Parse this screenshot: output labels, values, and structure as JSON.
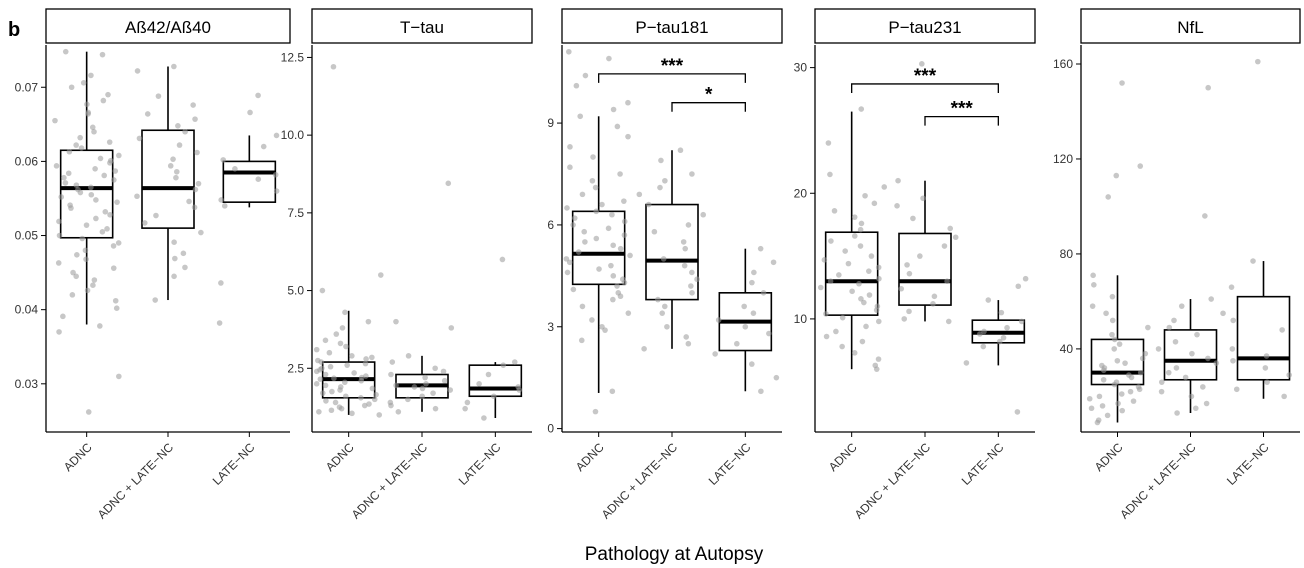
{
  "panel_tag": "b",
  "x_axis_title": "Pathology at Autopsy",
  "chart_data": [
    {
      "type": "box",
      "title": "Aß42/Aß40",
      "categories": [
        "ADNC",
        "ADNC + LATE−NC",
        "LATE−NC"
      ],
      "ylim": [
        0.0235,
        0.0757
      ],
      "yticks": [
        0.03,
        0.04,
        0.05,
        0.06,
        0.07
      ],
      "ytick_labels": [
        "0.03",
        "0.04",
        "0.05",
        "0.06",
        "0.07"
      ],
      "boxes": [
        {
          "q1": 0.0497,
          "median": 0.0564,
          "q3": 0.0615,
          "lo": 0.038,
          "hi": 0.0748
        },
        {
          "q1": 0.051,
          "median": 0.0564,
          "q3": 0.0642,
          "lo": 0.0413,
          "hi": 0.0728
        },
        {
          "q1": 0.0545,
          "median": 0.0585,
          "q3": 0.06,
          "lo": 0.0538,
          "hi": 0.0635
        }
      ],
      "points": [
        [
          0.0748,
          0.0744,
          0.0716,
          0.0706,
          0.07,
          0.069,
          0.0682,
          0.0677,
          0.0666,
          0.0664,
          0.0655,
          0.0646,
          0.064,
          0.0632,
          0.0626,
          0.0622,
          0.0618,
          0.0613,
          0.0608,
          0.0604,
          0.0601,
          0.0598,
          0.0594,
          0.059,
          0.0587,
          0.0584,
          0.0581,
          0.0578,
          0.0575,
          0.0571,
          0.0568,
          0.0565,
          0.0562,
          0.0558,
          0.0555,
          0.0552,
          0.0548,
          0.0545,
          0.0541,
          0.0537,
          0.0532,
          0.0528,
          0.0523,
          0.0519,
          0.0514,
          0.0509,
          0.0505,
          0.05,
          0.0496,
          0.049,
          0.0486,
          0.048,
          0.0474,
          0.0468,
          0.0463,
          0.0456,
          0.045,
          0.0445,
          0.044,
          0.0433,
          0.0426,
          0.042,
          0.0412,
          0.0402,
          0.0391,
          0.0378,
          0.037,
          0.031,
          0.0262
        ],
        [
          0.0728,
          0.0722,
          0.0688,
          0.0676,
          0.0664,
          0.0657,
          0.0648,
          0.064,
          0.0631,
          0.0622,
          0.0612,
          0.0603,
          0.0594,
          0.0586,
          0.0578,
          0.057,
          0.0562,
          0.0553,
          0.0546,
          0.0538,
          0.0527,
          0.0517,
          0.0504,
          0.0491,
          0.0476,
          0.0469,
          0.0457,
          0.0445,
          0.0413
        ],
        [
          0.0689,
          0.0666,
          0.0635,
          0.062,
          0.0602,
          0.059,
          0.0582,
          0.0576,
          0.056,
          0.0548,
          0.054,
          0.0436,
          0.0382
        ]
      ],
      "annotations": []
    },
    {
      "type": "box",
      "title": "T−tau",
      "categories": [
        "ADNC",
        "ADNC + LATE−NC",
        "LATE−NC"
      ],
      "ylim": [
        0.45,
        12.9
      ],
      "yticks": [
        2.5,
        5.0,
        7.5,
        10.0,
        12.5
      ],
      "ytick_labels": [
        "2.5",
        "5.0",
        "7.5",
        "10.0",
        "12.5"
      ],
      "boxes": [
        {
          "q1": 1.55,
          "median": 2.15,
          "q3": 2.7,
          "lo": 1.0,
          "hi": 4.35
        },
        {
          "q1": 1.55,
          "median": 1.95,
          "q3": 2.3,
          "lo": 1.1,
          "hi": 2.9
        },
        {
          "q1": 1.6,
          "median": 1.85,
          "q3": 2.6,
          "lo": 0.9,
          "hi": 2.7
        }
      ],
      "points": [
        [
          12.2,
          5.5,
          5.0,
          4.3,
          4.0,
          3.8,
          3.6,
          3.4,
          3.3,
          3.2,
          3.1,
          3.0,
          2.9,
          2.85,
          2.8,
          2.75,
          2.7,
          2.65,
          2.6,
          2.55,
          2.5,
          2.45,
          2.4,
          2.35,
          2.3,
          2.25,
          2.2,
          2.18,
          2.15,
          2.1,
          2.05,
          2.0,
          1.95,
          1.9,
          1.85,
          1.8,
          1.75,
          1.7,
          1.65,
          1.6,
          1.55,
          1.5,
          1.45,
          1.4,
          1.35,
          1.3,
          1.25,
          1.2,
          1.15,
          1.1,
          1.05,
          1.0
        ],
        [
          8.45,
          4.0,
          3.8,
          2.9,
          2.7,
          2.5,
          2.4,
          2.3,
          2.2,
          2.1,
          2.0,
          1.95,
          1.9,
          1.85,
          1.8,
          1.7,
          1.6,
          1.5,
          1.4,
          1.3,
          1.2,
          1.1
        ],
        [
          6.0,
          2.7,
          2.6,
          2.3,
          2.0,
          1.9,
          1.8,
          1.6,
          1.4,
          1.2,
          0.9
        ]
      ],
      "annotations": []
    },
    {
      "type": "box",
      "title": "P−tau181",
      "categories": [
        "ADNC",
        "ADNC + LATE−NC",
        "LATE−NC"
      ],
      "ylim": [
        -0.1,
        11.3
      ],
      "yticks": [
        0,
        3,
        6,
        9
      ],
      "ytick_labels": [
        "0",
        "3",
        "6",
        "9"
      ],
      "boxes": [
        {
          "q1": 4.25,
          "median": 5.15,
          "q3": 6.4,
          "lo": 1.05,
          "hi": 9.2
        },
        {
          "q1": 3.8,
          "median": 4.95,
          "q3": 6.6,
          "lo": 2.35,
          "hi": 8.2
        },
        {
          "q1": 2.3,
          "median": 3.15,
          "q3": 4.0,
          "lo": 1.1,
          "hi": 5.3
        }
      ],
      "points": [
        [
          11.1,
          10.9,
          10.4,
          10.1,
          9.6,
          9.4,
          9.2,
          8.9,
          8.6,
          8.3,
          8.0,
          7.7,
          7.5,
          7.3,
          7.1,
          6.9,
          6.7,
          6.6,
          6.5,
          6.4,
          6.3,
          6.2,
          6.1,
          6.0,
          5.9,
          5.8,
          5.7,
          5.6,
          5.5,
          5.4,
          5.3,
          5.2,
          5.1,
          5.0,
          4.9,
          4.8,
          4.7,
          4.6,
          4.5,
          4.4,
          4.3,
          4.2,
          4.1,
          4.0,
          3.9,
          3.8,
          3.6,
          3.4,
          3.2,
          3.0,
          2.9,
          2.6,
          1.1,
          0.5
        ],
        [
          8.2,
          7.9,
          7.5,
          7.3,
          7.1,
          6.9,
          6.6,
          6.3,
          6.0,
          5.8,
          5.5,
          5.3,
          5.0,
          4.8,
          4.6,
          4.4,
          4.2,
          4.0,
          3.8,
          3.6,
          3.4,
          3.0,
          2.7,
          2.5,
          2.35
        ],
        [
          5.3,
          4.9,
          4.6,
          4.3,
          4.0,
          3.6,
          3.4,
          3.2,
          3.0,
          2.8,
          2.5,
          2.2,
          1.9,
          1.5,
          1.1
        ]
      ],
      "annotations": [
        {
          "from": 0,
          "to": 2,
          "y": 10.45,
          "label": "***"
        },
        {
          "from": 1,
          "to": 2,
          "y": 9.6,
          "label": "*"
        }
      ]
    },
    {
      "type": "box",
      "title": "P−tau231",
      "categories": [
        "ADNC",
        "ADNC + LATE−NC",
        "LATE−NC"
      ],
      "ylim": [
        1.0,
        31.8
      ],
      "yticks": [
        10,
        20,
        30
      ],
      "ytick_labels": [
        "10",
        "20",
        "30"
      ],
      "boxes": [
        {
          "q1": 10.3,
          "median": 13.0,
          "q3": 16.9,
          "lo": 6.0,
          "hi": 26.5
        },
        {
          "q1": 11.1,
          "median": 13.0,
          "q3": 16.8,
          "lo": 9.8,
          "hi": 21.0
        },
        {
          "q1": 8.1,
          "median": 8.9,
          "q3": 9.9,
          "lo": 6.3,
          "hi": 11.5
        }
      ],
      "points": [
        [
          26.7,
          24.0,
          21.5,
          20.5,
          19.8,
          19.2,
          18.6,
          18.1,
          17.6,
          17.1,
          16.6,
          16.2,
          15.8,
          15.4,
          15.0,
          14.7,
          14.4,
          14.1,
          13.8,
          13.5,
          13.2,
          13.0,
          12.8,
          12.5,
          12.2,
          11.9,
          11.6,
          11.3,
          11.0,
          10.7,
          10.4,
          10.1,
          9.8,
          9.4,
          9.0,
          8.6,
          8.2,
          7.8,
          7.3,
          6.8,
          6.3,
          6.0
        ],
        [
          30.3,
          21.0,
          19.6,
          19.0,
          18.0,
          17.2,
          16.5,
          15.8,
          15.0,
          14.3,
          13.6,
          13.0,
          12.4,
          11.8,
          11.2,
          10.6,
          10.0,
          9.8
        ],
        [
          13.2,
          12.6,
          11.5,
          10.5,
          9.8,
          9.3,
          9.0,
          8.8,
          8.5,
          8.2,
          7.8,
          6.5,
          2.6
        ]
      ],
      "annotations": [
        {
          "from": 0,
          "to": 2,
          "y": 28.7,
          "label": "***"
        },
        {
          "from": 1,
          "to": 2,
          "y": 26.1,
          "label": "***"
        }
      ]
    },
    {
      "type": "box",
      "title": "NfL",
      "categories": [
        "ADNC",
        "ADNC + LATE−NC",
        "LATE−NC"
      ],
      "ylim": [
        5,
        168
      ],
      "yticks": [
        40,
        80,
        120,
        160
      ],
      "ytick_labels": [
        "40",
        "80",
        "120",
        "160"
      ],
      "boxes": [
        {
          "q1": 25,
          "median": 30,
          "q3": 44,
          "lo": 9,
          "hi": 71
        },
        {
          "q1": 27,
          "median": 35,
          "q3": 48,
          "lo": 13,
          "hi": 61
        },
        {
          "q1": 27,
          "median": 36,
          "q3": 62,
          "lo": 19,
          "hi": 77
        }
      ],
      "points": [
        [
          152,
          117,
          113,
          104,
          71,
          67,
          62,
          58,
          55,
          52,
          49,
          46,
          44,
          42,
          40,
          38,
          36,
          35,
          34,
          33,
          32,
          31,
          30,
          29,
          28,
          27,
          26,
          25,
          24,
          23,
          22,
          21,
          20,
          19,
          18,
          17,
          16,
          15,
          14,
          12,
          10,
          9
        ],
        [
          150,
          96,
          61,
          58,
          55,
          52,
          49,
          46,
          43,
          40,
          38,
          36,
          34,
          32,
          30,
          28,
          26,
          24,
          22,
          20,
          17,
          15,
          13
        ],
        [
          161,
          77,
          66,
          52,
          48,
          40,
          37,
          35,
          32,
          29,
          26,
          23,
          20
        ]
      ],
      "annotations": []
    }
  ]
}
